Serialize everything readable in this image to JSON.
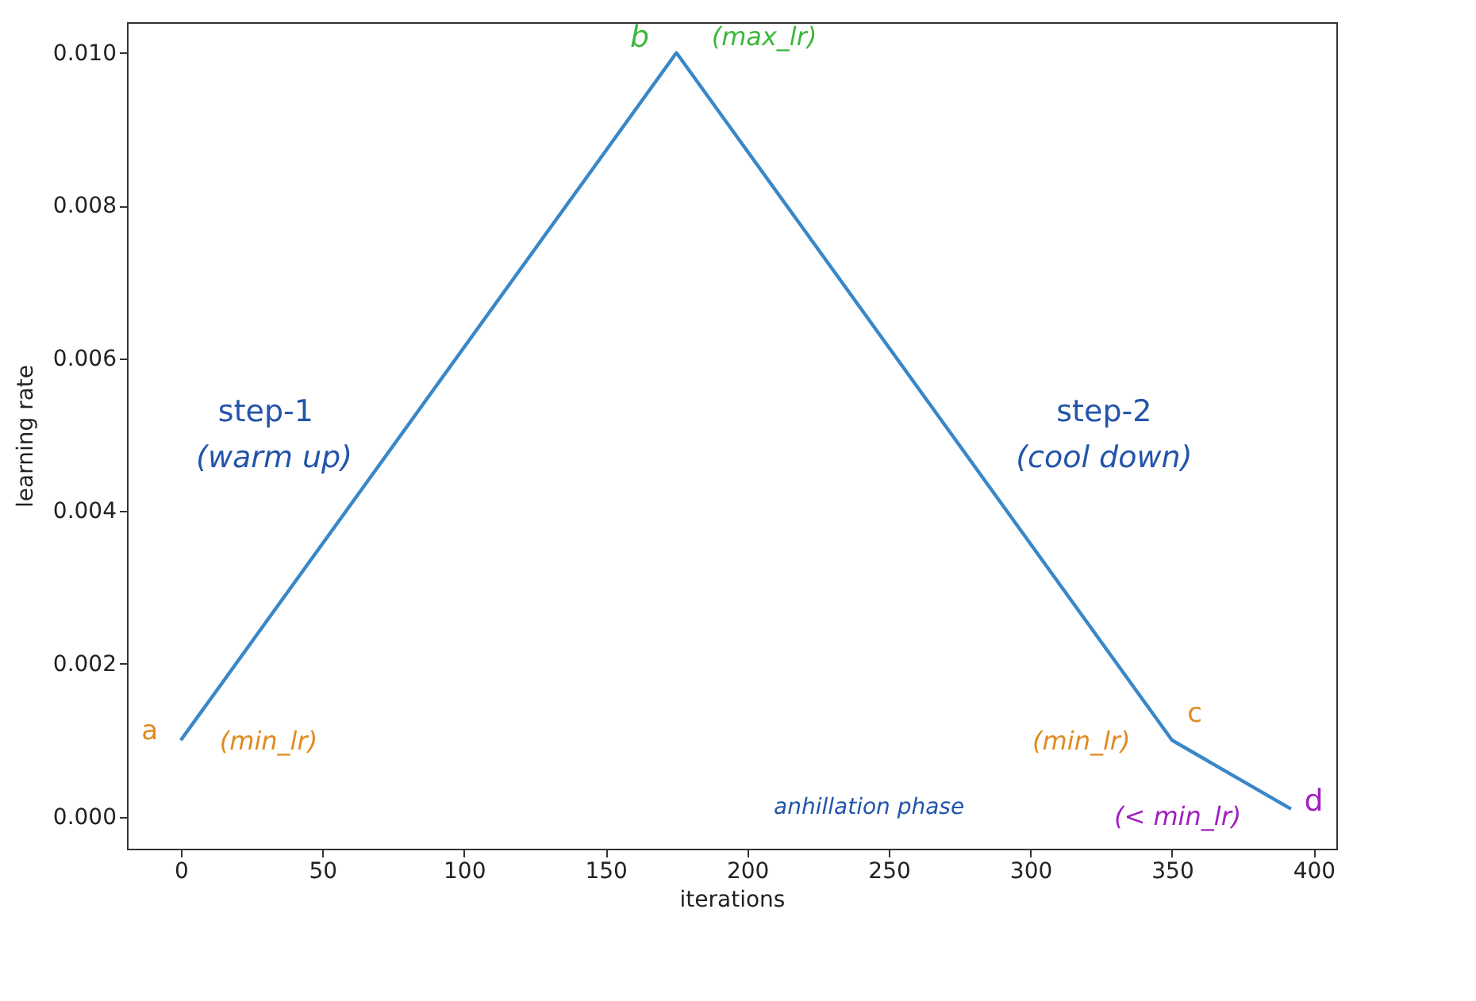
{
  "chart_data": {
    "type": "line",
    "xlabel": "iterations",
    "ylabel": "learning rate",
    "x": [
      0,
      175,
      350,
      392
    ],
    "series": [
      {
        "color": "#3a87c8",
        "values": [
          0.001,
          0.01,
          0.001,
          0.0001
        ]
      }
    ],
    "xlim": [
      -19,
      408
    ],
    "ylim": [
      -0.00042,
      0.0104
    ],
    "xticks": [
      0,
      50,
      100,
      150,
      200,
      250,
      300,
      350,
      400
    ],
    "yticks": [
      {
        "value": 0,
        "label": "0.000"
      },
      {
        "value": 0.002,
        "label": "0.002"
      },
      {
        "value": 0.004,
        "label": "0.004"
      },
      {
        "value": 0.006,
        "label": "0.006"
      },
      {
        "value": 0.008,
        "label": "0.008"
      },
      {
        "value": 0.01,
        "label": "0.010"
      }
    ],
    "grid": false,
    "marker": "none",
    "line_style": "solid",
    "annotations": [
      "a",
      "(min_lr)",
      "b",
      "(max_lr)",
      "step-1",
      "(warm up)",
      "step-2",
      "(cool down)",
      "(min_lr)",
      "c",
      "anhillation phase",
      "(< min_lr)",
      "d"
    ]
  }
}
